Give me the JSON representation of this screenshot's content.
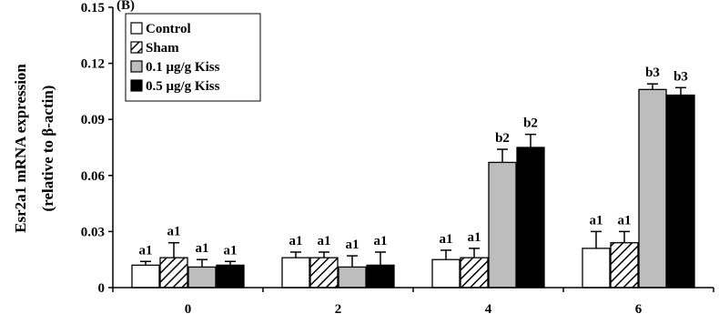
{
  "chart_data": {
    "type": "bar",
    "title": "",
    "panel_label": "(B)",
    "ylabel_line1": "Esr2a1 mRNA expression",
    "ylabel_line2": "(relative to β-actin)",
    "xlabel": "",
    "ylim": [
      0,
      0.15
    ],
    "yticks": [
      "0",
      "0.03",
      "0.06",
      "0.09",
      "0.12",
      "0.15"
    ],
    "ytick_values": [
      0,
      0.03,
      0.06,
      0.09,
      0.12,
      0.15
    ],
    "categories": [
      "0",
      "2",
      "4",
      "6"
    ],
    "legend_position": "top-left",
    "series": [
      {
        "name": "Control",
        "fill": "white",
        "color": "#ffffff",
        "values": [
          0.012,
          0.016,
          0.015,
          0.021
        ],
        "errors": [
          0.002,
          0.003,
          0.005,
          0.009
        ],
        "labels": [
          "a1",
          "a1",
          "a1",
          "a1"
        ]
      },
      {
        "name": "Sham",
        "fill": "hatch",
        "color": "#ffffff",
        "values": [
          0.016,
          0.016,
          0.016,
          0.024
        ],
        "errors": [
          0.008,
          0.003,
          0.005,
          0.006
        ],
        "labels": [
          "a1",
          "a1",
          "a1",
          "a1"
        ]
      },
      {
        "name": "0.1 μg/g Kiss",
        "fill": "gray",
        "color": "#bdbdbd",
        "values": [
          0.011,
          0.011,
          0.067,
          0.106
        ],
        "errors": [
          0.004,
          0.006,
          0.007,
          0.003
        ],
        "labels": [
          "a1",
          "a1",
          "b2",
          "b3"
        ]
      },
      {
        "name": "0.5 μg/g Kiss",
        "fill": "black",
        "color": "#000000",
        "values": [
          0.012,
          0.012,
          0.075,
          0.103
        ],
        "errors": [
          0.002,
          0.007,
          0.007,
          0.004
        ],
        "labels": [
          "a1",
          "a1",
          "b2",
          "b3"
        ]
      }
    ]
  }
}
